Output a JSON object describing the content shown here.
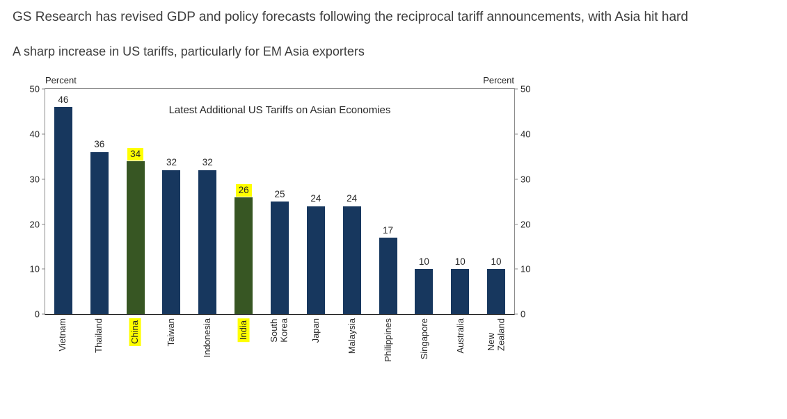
{
  "page": {
    "heading": "GS Research has revised GDP and policy forecasts following the reciprocal tariff announcements, with Asia hit hard",
    "chart_caption": "A sharp increase in US tariffs, particularly for EM Asia exporters"
  },
  "chart_data": {
    "type": "bar",
    "title": "Latest Additional US Tariffs on Asian Economies",
    "axis_unit_left": "Percent",
    "axis_unit_right": "Percent",
    "ylim": [
      0,
      50
    ],
    "yticks": [
      0,
      10,
      20,
      30,
      40,
      50
    ],
    "categories": [
      "Vietnam",
      "Thailand",
      "China",
      "Taiwan",
      "Indonesia",
      "India",
      "South Korea",
      "Japan",
      "Malaysia",
      "Philippines",
      "Singapore",
      "Australia",
      "New Zealand"
    ],
    "values": [
      46,
      36,
      34,
      32,
      32,
      26,
      25,
      24,
      24,
      17,
      10,
      10,
      10
    ],
    "highlighted_categories": [
      "China",
      "India"
    ],
    "grid": false,
    "legend_position": "none",
    "colors": {
      "bar": "#17375e",
      "highlight_bar": "#375623",
      "highlight_label_bg": "#ffff00",
      "axis_text": "#262626"
    }
  }
}
